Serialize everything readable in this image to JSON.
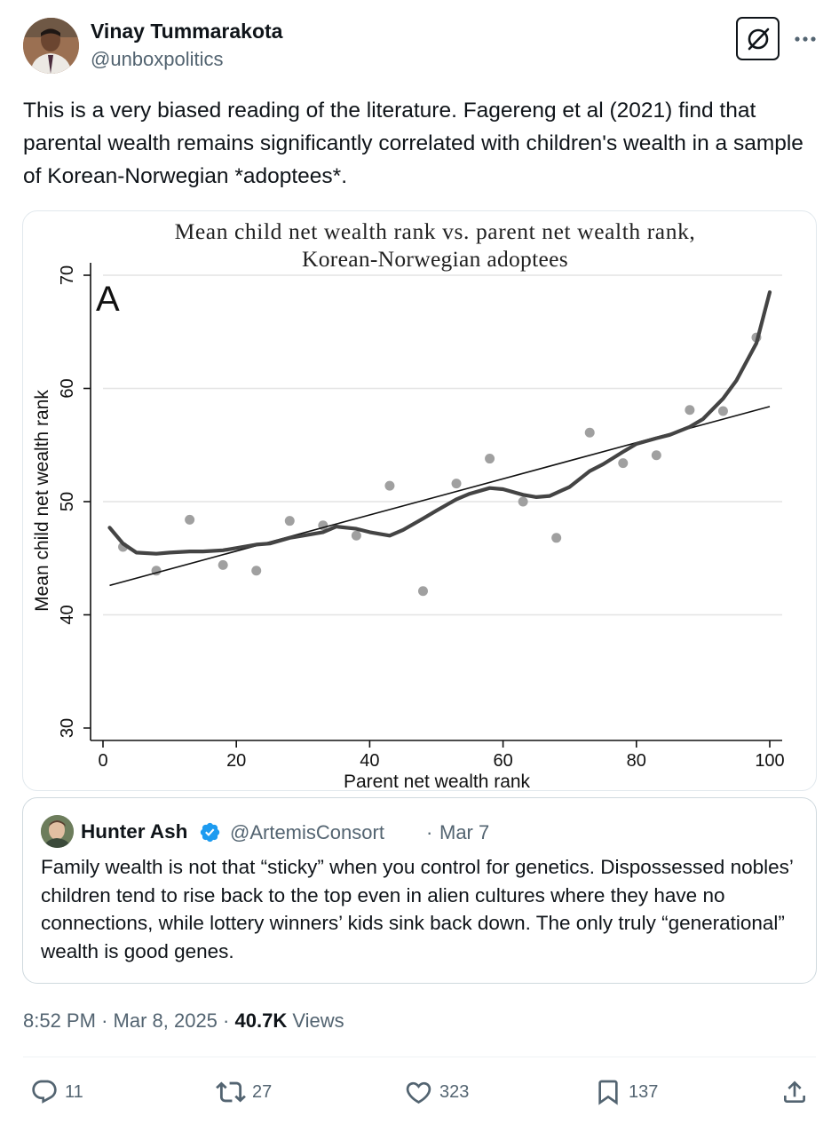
{
  "author": {
    "name": "Vinay Tummarakota",
    "handle": "@unboxpolitics"
  },
  "tweet": {
    "text": "This is a very biased reading of the literature. Fagereng et al (2021) find that parental wealth remains significantly correlated with children's wealth in a sample of Korean-Norwegian *adoptees*."
  },
  "chart_data": {
    "type": "scatter",
    "title": "Mean child net wealth rank vs. parent net wealth rank,",
    "subtitle": "Korean-Norwegian adoptees",
    "panel_label": "A",
    "xlabel": "Parent net wealth rank",
    "ylabel": "Mean child net wealth rank",
    "xlim": [
      0,
      100
    ],
    "ylim": [
      30,
      70
    ],
    "xticks": [
      0,
      20,
      40,
      60,
      80,
      100
    ],
    "yticks": [
      30,
      40,
      50,
      60,
      70
    ],
    "grid": "horizontal",
    "series": [
      {
        "kind": "points",
        "x": [
          3,
          8,
          13,
          18,
          23,
          28,
          33,
          38,
          43,
          48,
          53,
          58,
          63,
          68,
          73,
          78,
          83,
          88,
          93,
          98
        ],
        "y": [
          46,
          43.9,
          48.4,
          44.4,
          43.9,
          48.3,
          47.9,
          47,
          51.4,
          42.1,
          51.6,
          53.8,
          50,
          46.8,
          56.1,
          53.4,
          54.1,
          58.1,
          58,
          64.5
        ]
      },
      {
        "kind": "linear-fit",
        "x": [
          1,
          100
        ],
        "y": [
          42.6,
          58.4
        ]
      },
      {
        "kind": "smooth",
        "x": [
          1,
          3,
          5,
          8,
          10,
          13,
          15,
          18,
          20,
          23,
          25,
          28,
          30,
          33,
          35,
          38,
          40,
          43,
          45,
          48,
          50,
          53,
          55,
          58,
          60,
          63,
          65,
          67,
          70,
          73,
          75,
          78,
          80,
          83,
          85,
          88,
          90,
          93,
          95,
          98,
          100
        ],
        "y": [
          47.7,
          46.3,
          45.5,
          45.4,
          45.5,
          45.6,
          45.6,
          45.7,
          45.9,
          46.2,
          46.3,
          46.8,
          47,
          47.3,
          47.8,
          47.6,
          47.3,
          47,
          47.5,
          48.5,
          49.2,
          50.2,
          50.7,
          51.2,
          51.1,
          50.6,
          50.4,
          50.5,
          51.3,
          52.7,
          53.3,
          54.4,
          55.1,
          55.6,
          55.9,
          56.6,
          57.3,
          59.1,
          60.7,
          64,
          68.5
        ]
      }
    ]
  },
  "quote": {
    "name": "Hunter Ash",
    "handle": "@ArtemisConsort",
    "separator": "·",
    "date": "Mar 7",
    "text": "Family wealth is not that “sticky” when you control for genetics. Dispossessed nobles’ children tend to rise back to the top even in alien cultures where they have no connections, while lottery winners’ kids sink back down. The only truly “generational” wealth is good genes."
  },
  "meta": {
    "time": "8:52 PM",
    "sep1": "·",
    "date": "Mar 8, 2025",
    "sep2": "·",
    "views_count": "40.7K",
    "views_label": "Views"
  },
  "actions": {
    "replies": "11",
    "reposts": "27",
    "likes": "323",
    "bookmarks": "137"
  },
  "icons": {
    "verified": "verified-badge-icon",
    "grok": "grok-icon",
    "more": "more-icon",
    "reply": "reply-icon",
    "repost": "repost-icon",
    "like": "heart-icon",
    "bookmark": "bookmark-icon",
    "share": "share-icon"
  },
  "colors": {
    "text": "#0f1419",
    "secondary": "#536471",
    "verified": "#1d9bf0",
    "border": "#cfd9de"
  }
}
